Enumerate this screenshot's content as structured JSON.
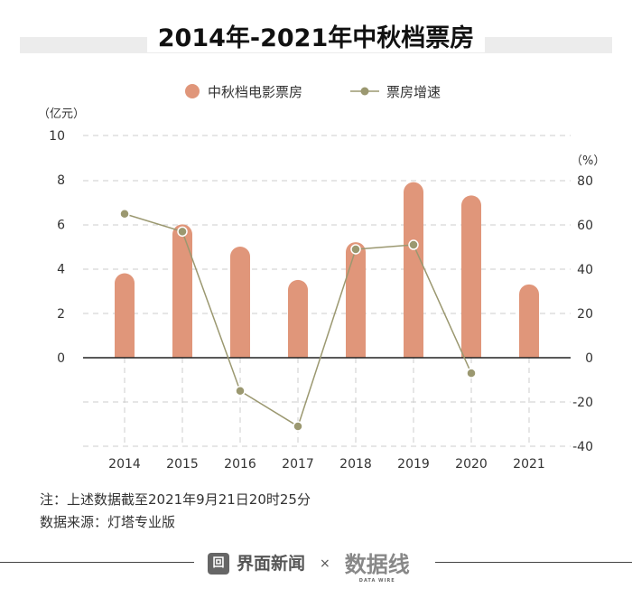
{
  "title": "2014年-2021年中秋档票房",
  "chart_data": {
    "type": "bar+line",
    "title": "2014年-2021年中秋档票房",
    "categories": [
      "2014",
      "2015",
      "2016",
      "2017",
      "2018",
      "2019",
      "2020",
      "2021"
    ],
    "series": [
      {
        "name": "中秋档电影票房",
        "type": "bar",
        "axis": "left",
        "color": "#e0967a",
        "values": [
          3.8,
          6.0,
          5.0,
          3.5,
          5.2,
          7.9,
          7.3,
          3.3
        ]
      },
      {
        "name": "票房增速",
        "type": "line",
        "axis": "right",
        "color": "#9b9870",
        "values": [
          65,
          57,
          -15,
          -31,
          49,
          51,
          -7,
          null
        ]
      }
    ],
    "left_axis": {
      "label": "（亿元）",
      "ylim": [
        0,
        10
      ],
      "ticks": [
        "0",
        "2",
        "4",
        "6",
        "8",
        "10"
      ]
    },
    "right_axis": {
      "label": "（%）",
      "ylim": [
        -40,
        80
      ],
      "ticks": [
        "-40",
        "-20",
        "0",
        "20",
        "40",
        "60",
        "80"
      ]
    },
    "legend_position": "top-center",
    "grid": true
  },
  "notes": {
    "line1": "注：上述数据截至2021年9月21日20时25分",
    "line2": "数据来源：灯塔专业版"
  },
  "footer": {
    "brand": "界面新闻",
    "times": "×",
    "partner": "数据线",
    "partner_sub": "DATA WIRE"
  }
}
